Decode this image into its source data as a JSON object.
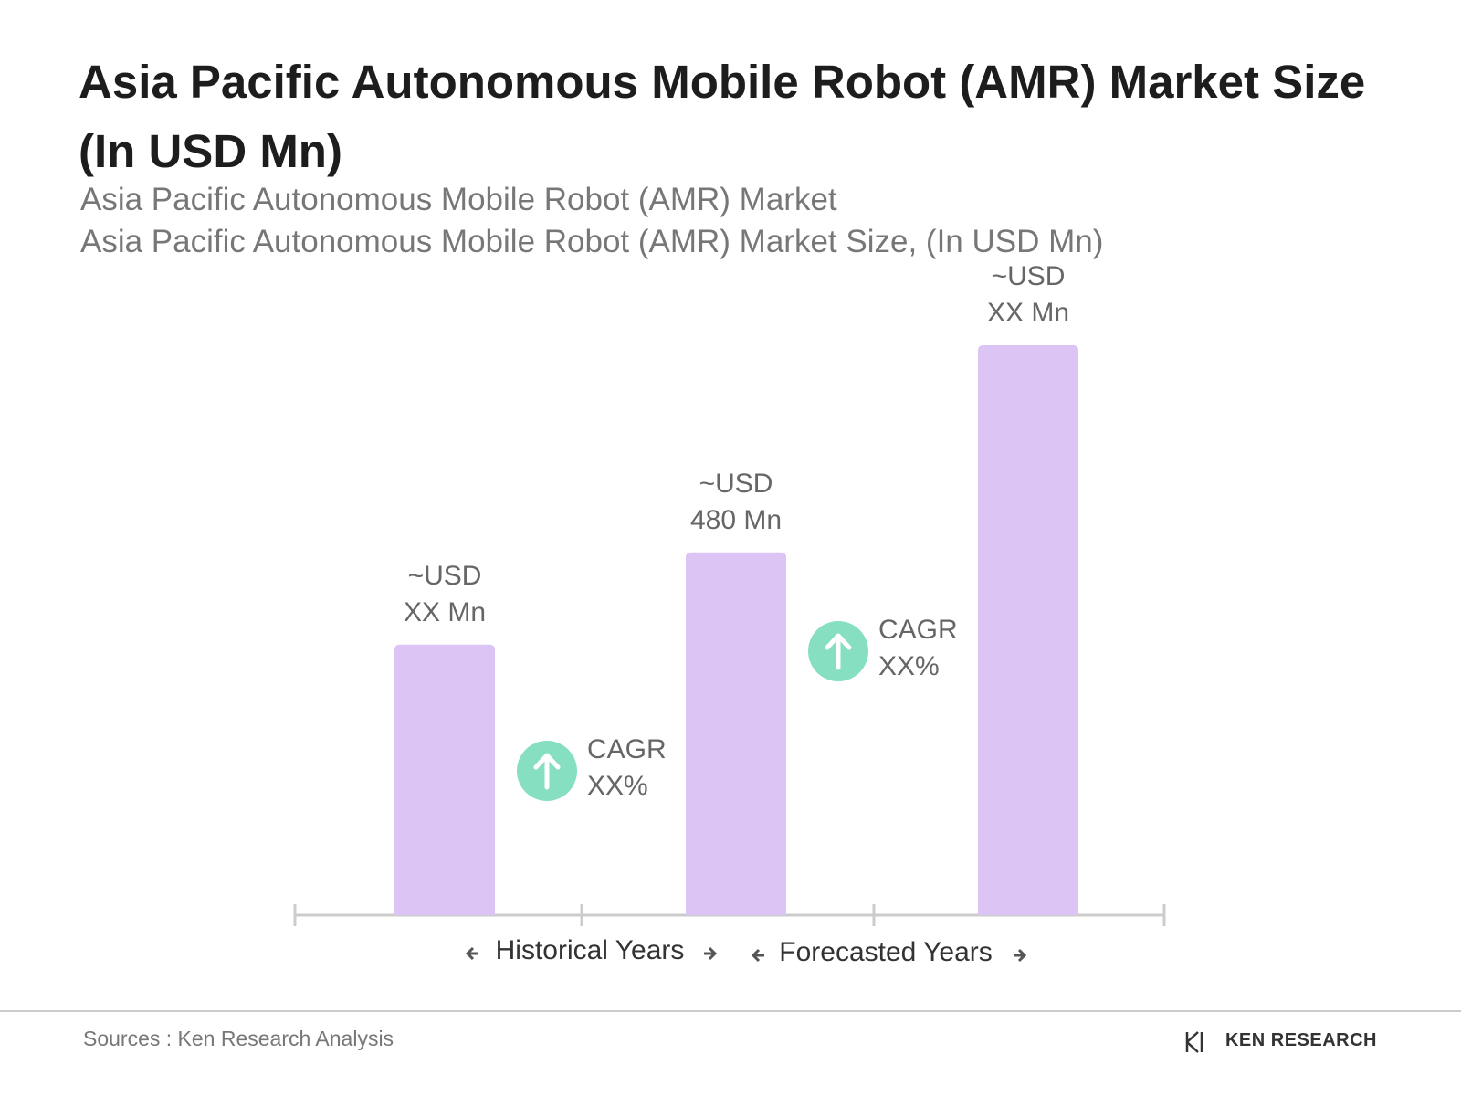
{
  "chart_data": {
    "type": "bar",
    "title": "Asia Pacific Autonomous Mobile Robot (AMR) Market Size (In USD Mn)",
    "subtitle": [
      "Asia Pacific Autonomous Mobile Robot (AMR) Market",
      "Asia Pacific Autonomous Mobile Robot (AMR) Market Size, (In USD Mn)"
    ],
    "categories": [
      null,
      null,
      null
    ],
    "values": [
      358,
      480,
      754
    ],
    "value_labels": [
      "~USD\nXX Mn",
      "~USD\n480 Mn",
      "~USD\nXX Mn"
    ],
    "color": "#dcc4f5",
    "annotations": [
      {
        "label": "CAGR\nXX%",
        "color": "#86dfc1"
      },
      {
        "label": "CAGR\nXX%",
        "color": "#86dfc1"
      }
    ],
    "period_labels": [
      "Historical Years",
      "Forecasted Years"
    ]
  },
  "footer": {
    "source": "Sources : Ken Research Analysis",
    "logo": "KEN RESEARCH"
  }
}
